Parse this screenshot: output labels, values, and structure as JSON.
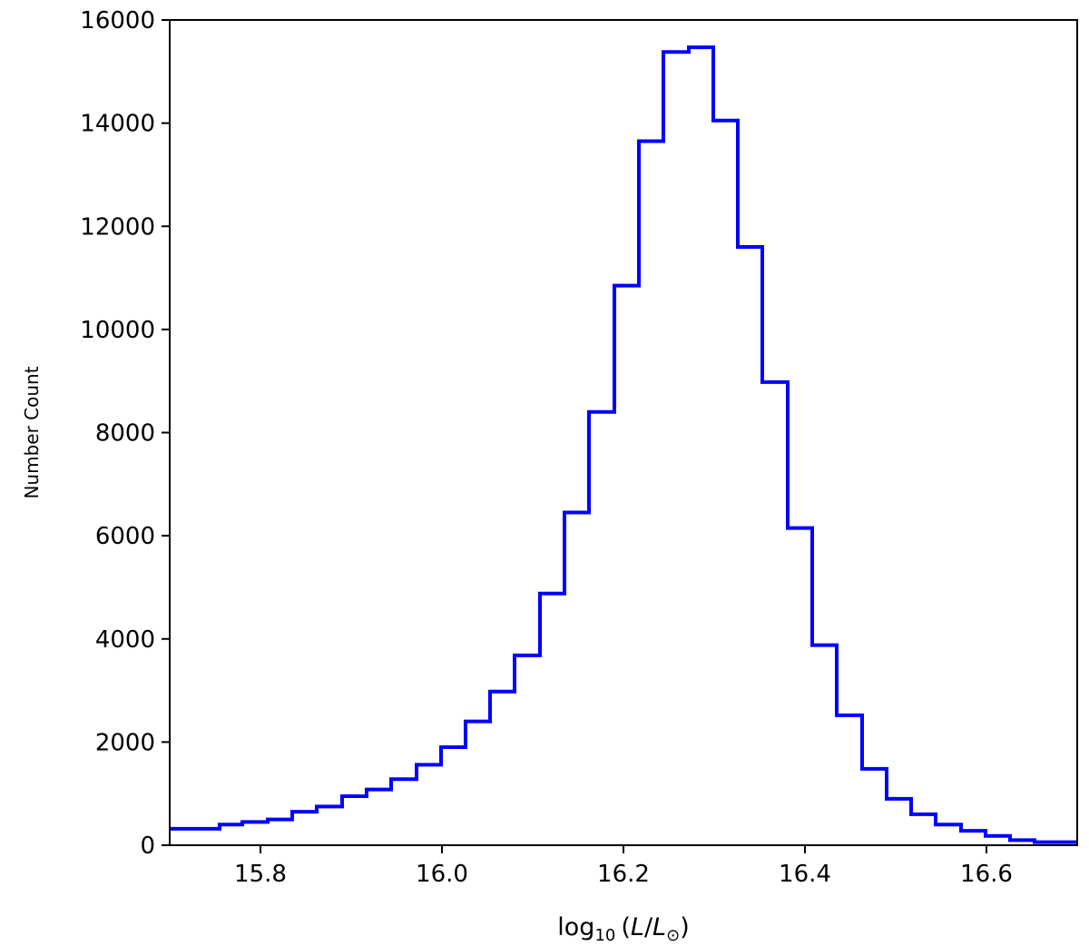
{
  "chart_data": {
    "type": "histogram",
    "title": "",
    "xlabel": {
      "prefix": "log",
      "prefix_sub": "10",
      "open": "(",
      "numerator": "L",
      "slash": "/",
      "denominator": "L",
      "denominator_sub": "⊙",
      "close": ")"
    },
    "ylabel": "Number Count",
    "xlim": [
      15.7,
      16.7
    ],
    "ylim": [
      0,
      16000
    ],
    "xticks": [
      15.8,
      16.0,
      16.2,
      16.4,
      16.6
    ],
    "xtick_labels": [
      "15.8",
      "16.0",
      "16.2",
      "16.4",
      "16.6"
    ],
    "yticks": [
      0,
      2000,
      4000,
      6000,
      8000,
      10000,
      12000,
      14000,
      16000
    ],
    "ytick_labels": [
      "0",
      "2000",
      "4000",
      "6000",
      "8000",
      "10000",
      "12000",
      "14000",
      "16000"
    ],
    "bin_edges": [
      15.7,
      15.755,
      15.78,
      15.808,
      15.835,
      15.862,
      15.89,
      15.917,
      15.944,
      15.972,
      15.999,
      16.026,
      16.053,
      16.08,
      16.108,
      16.135,
      16.162,
      16.19,
      16.217,
      16.244,
      16.272,
      16.299,
      16.326,
      16.353,
      16.381,
      16.408,
      16.435,
      16.463,
      16.49,
      16.517,
      16.544,
      16.572,
      16.599,
      16.626,
      16.653,
      16.7
    ],
    "counts": [
      320,
      400,
      450,
      500,
      650,
      750,
      950,
      1080,
      1280,
      1560,
      1900,
      2400,
      2980,
      3680,
      4880,
      6450,
      8400,
      10850,
      13650,
      15380,
      15470,
      14050,
      11600,
      8980,
      6150,
      3880,
      2520,
      1480,
      900,
      600,
      400,
      280,
      180,
      100,
      60
    ],
    "line_color": "#0000ff",
    "grid": false,
    "legend": "none"
  }
}
